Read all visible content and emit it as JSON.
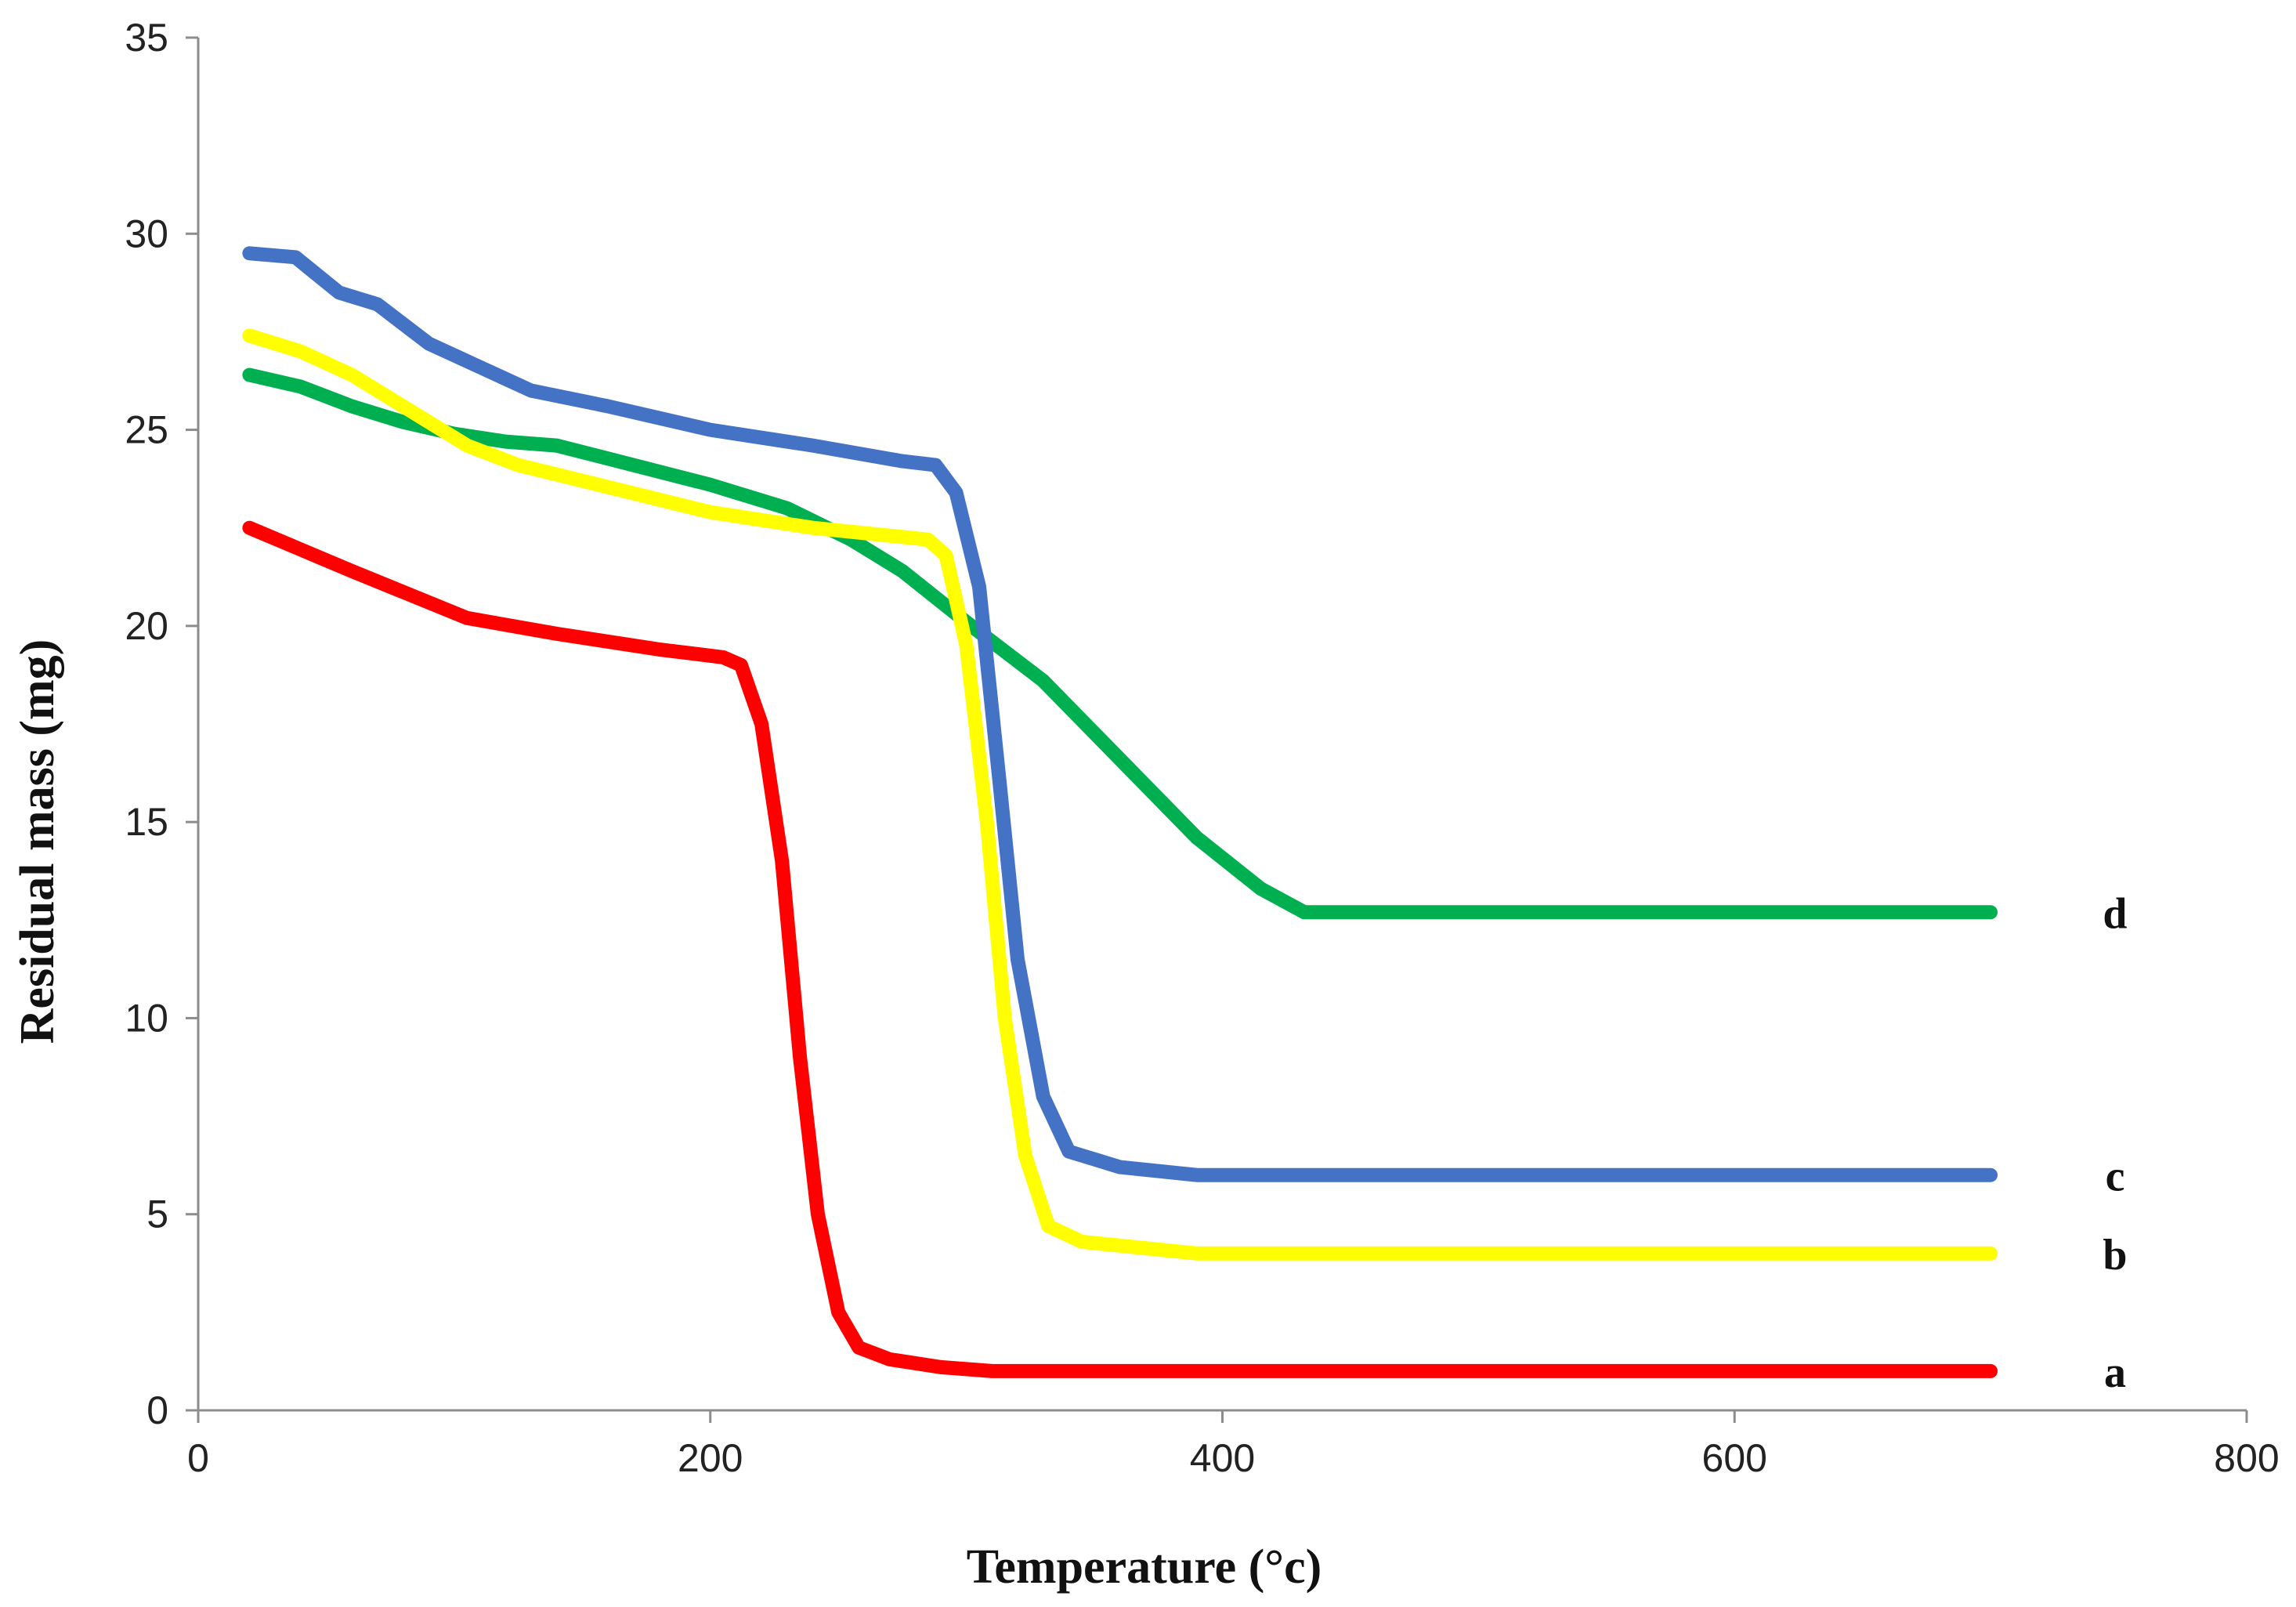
{
  "chart_data": {
    "type": "line",
    "title": "",
    "xlabel": "Temperature (°c)",
    "ylabel": "Residual mass (mg)",
    "xlim": [
      0,
      800
    ],
    "ylim": [
      0,
      35
    ],
    "x_ticks": [
      0,
      200,
      400,
      600,
      800
    ],
    "y_ticks": [
      0,
      5,
      10,
      15,
      20,
      25,
      30,
      35
    ],
    "x_tick_labels": [
      "0",
      "200",
      "400",
      "600",
      "800"
    ],
    "y_tick_labels": [
      "0",
      "5",
      "10",
      "15",
      "20",
      "25",
      "30",
      "35"
    ],
    "grid": false,
    "legend": "inline labels at right end of each line",
    "series": [
      {
        "name": "a",
        "label": "a",
        "color": "#ff0000",
        "points": [
          [
            20,
            22.5
          ],
          [
            60,
            21.4
          ],
          [
            105,
            20.2
          ],
          [
            140,
            19.8
          ],
          [
            180,
            19.4
          ],
          [
            205,
            19.2
          ],
          [
            212,
            19.0
          ],
          [
            220,
            17.5
          ],
          [
            228,
            14.0
          ],
          [
            235,
            9.0
          ],
          [
            242,
            5.0
          ],
          [
            250,
            2.5
          ],
          [
            258,
            1.6
          ],
          [
            270,
            1.3
          ],
          [
            290,
            1.1
          ],
          [
            310,
            1.0
          ],
          [
            700,
            1.0
          ]
        ]
      },
      {
        "name": "b",
        "label": "b",
        "color": "#ffff00",
        "points": [
          [
            20,
            27.4
          ],
          [
            40,
            27.0
          ],
          [
            60,
            26.4
          ],
          [
            80,
            25.6
          ],
          [
            105,
            24.6
          ],
          [
            125,
            24.1
          ],
          [
            150,
            23.7
          ],
          [
            200,
            22.9
          ],
          [
            240,
            22.5
          ],
          [
            285,
            22.2
          ],
          [
            292,
            21.8
          ],
          [
            300,
            19.5
          ],
          [
            308,
            15.0
          ],
          [
            315,
            10.0
          ],
          [
            323,
            6.5
          ],
          [
            332,
            4.7
          ],
          [
            345,
            4.3
          ],
          [
            390,
            4.0
          ],
          [
            700,
            4.0
          ]
        ]
      },
      {
        "name": "c",
        "label": "c",
        "color": "#4472c4",
        "points": [
          [
            20,
            29.5
          ],
          [
            38,
            29.4
          ],
          [
            55,
            28.5
          ],
          [
            70,
            28.2
          ],
          [
            90,
            27.2
          ],
          [
            110,
            26.6
          ],
          [
            130,
            26.0
          ],
          [
            160,
            25.6
          ],
          [
            200,
            25.0
          ],
          [
            240,
            24.6
          ],
          [
            275,
            24.2
          ],
          [
            288,
            24.1
          ],
          [
            296,
            23.4
          ],
          [
            305,
            21.0
          ],
          [
            313,
            16.0
          ],
          [
            320,
            11.5
          ],
          [
            330,
            8.0
          ],
          [
            340,
            6.6
          ],
          [
            360,
            6.2
          ],
          [
            390,
            6.0
          ],
          [
            700,
            6.0
          ]
        ]
      },
      {
        "name": "d",
        "label": "d",
        "color": "#00b050",
        "points": [
          [
            20,
            26.4
          ],
          [
            40,
            26.1
          ],
          [
            60,
            25.6
          ],
          [
            80,
            25.2
          ],
          [
            100,
            24.9
          ],
          [
            120,
            24.7
          ],
          [
            140,
            24.6
          ],
          [
            170,
            24.1
          ],
          [
            200,
            23.6
          ],
          [
            230,
            23.0
          ],
          [
            255,
            22.2
          ],
          [
            275,
            21.4
          ],
          [
            300,
            20.1
          ],
          [
            330,
            18.6
          ],
          [
            360,
            16.6
          ],
          [
            390,
            14.6
          ],
          [
            415,
            13.3
          ],
          [
            432,
            12.7
          ],
          [
            700,
            12.7
          ]
        ]
      }
    ]
  }
}
